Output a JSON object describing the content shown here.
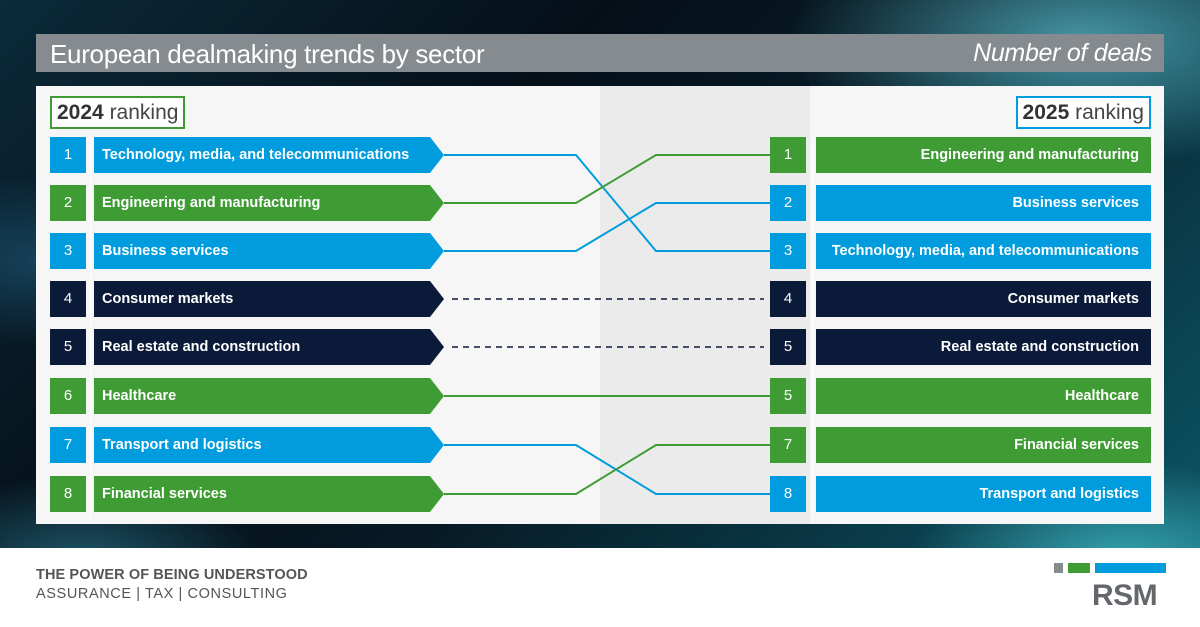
{
  "header": {
    "title": "European dealmaking trends by sector",
    "subtitle": "Number of deals"
  },
  "left_label": {
    "year": "2024",
    "word": "ranking"
  },
  "right_label": {
    "year": "2025",
    "word": "ranking"
  },
  "colors": {
    "blue": "#009cde",
    "green": "#3f9c35",
    "navy": "#0c1a3a",
    "gray": "#868b8f"
  },
  "left_rows": [
    {
      "rank": "1",
      "sector": "Technology, media, and telecommunications",
      "color": "blue"
    },
    {
      "rank": "2",
      "sector": "Engineering and manufacturing",
      "color": "green"
    },
    {
      "rank": "3",
      "sector": "Business services",
      "color": "blue"
    },
    {
      "rank": "4",
      "sector": "Consumer markets",
      "color": "navy"
    },
    {
      "rank": "5",
      "sector": "Real estate and construction",
      "color": "navy"
    },
    {
      "rank": "6",
      "sector": "Healthcare",
      "color": "green"
    },
    {
      "rank": "7",
      "sector": "Transport and logistics",
      "color": "blue"
    },
    {
      "rank": "8",
      "sector": "Financial services",
      "color": "green"
    }
  ],
  "right_rows": [
    {
      "rank": "1",
      "sector": "Engineering and manufacturing",
      "color": "green"
    },
    {
      "rank": "2",
      "sector": "Business services",
      "color": "blue"
    },
    {
      "rank": "3",
      "sector": "Technology, media, and telecommunications",
      "color": "blue"
    },
    {
      "rank": "4",
      "sector": "Consumer markets",
      "color": "navy"
    },
    {
      "rank": "5",
      "sector": "Real estate and construction",
      "color": "navy"
    },
    {
      "rank": "5",
      "sector": "Healthcare",
      "color": "green"
    },
    {
      "rank": "7",
      "sector": "Financial services",
      "color": "green"
    },
    {
      "rank": "8",
      "sector": "Transport and logistics",
      "color": "blue"
    }
  ],
  "connectors": [
    {
      "from_row": 1,
      "to_row": 3,
      "color": "blue",
      "style": "solid"
    },
    {
      "from_row": 2,
      "to_row": 1,
      "color": "green",
      "style": "solid"
    },
    {
      "from_row": 3,
      "to_row": 2,
      "color": "blue",
      "style": "solid"
    },
    {
      "from_row": 4,
      "to_row": 4,
      "color": "navy",
      "style": "dashed"
    },
    {
      "from_row": 5,
      "to_row": 5,
      "color": "navy",
      "style": "dashed"
    },
    {
      "from_row": 6,
      "to_row": 6,
      "color": "green",
      "style": "solid"
    },
    {
      "from_row": 7,
      "to_row": 8,
      "color": "blue",
      "style": "solid"
    },
    {
      "from_row": 8,
      "to_row": 7,
      "color": "green",
      "style": "solid"
    }
  ],
  "footer": {
    "tagline": "THE POWER OF BEING UNDERSTOOD",
    "services": "ASSURANCE | TAX | CONSULTING"
  },
  "logo": {
    "text": "RSM"
  }
}
